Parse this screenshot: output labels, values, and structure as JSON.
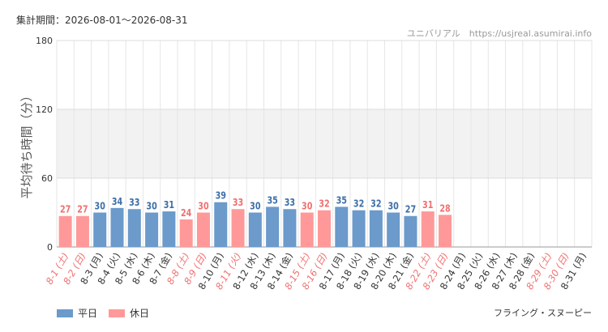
{
  "header": {
    "period": "集計期間：2026-08-01～2026-08-31",
    "source": "ユニバリアル　https://usjreal.asumirai.info",
    "attraction": "フライング・スヌーピー"
  },
  "colors": {
    "weekday": "#6b9acb",
    "holiday": "#ff9999",
    "weekday_text": "#3d6fa8",
    "holiday_text": "#f07070"
  },
  "chart_data": {
    "type": "bar",
    "ylabel": "平均待ち時間（分）",
    "ylim": [
      0,
      180
    ],
    "yticks": [
      0,
      60,
      120,
      180
    ],
    "grid": true,
    "legend_position": "bottom-left",
    "series": [
      {
        "name": "平日",
        "key": "weekday"
      },
      {
        "name": "休日",
        "key": "holiday"
      }
    ],
    "categories": [
      "8-1 (土)",
      "8-2 (日)",
      "8-3 (月)",
      "8-4 (火)",
      "8-5 (水)",
      "8-6 (木)",
      "8-7 (金)",
      "8-8 (土)",
      "8-9 (日)",
      "8-10 (月)",
      "8-11 (火)",
      "8-12 (水)",
      "8-13 (木)",
      "8-14 (金)",
      "8-15 (土)",
      "8-16 (日)",
      "8-17 (月)",
      "8-18 (火)",
      "8-19 (水)",
      "8-20 (木)",
      "8-21 (金)",
      "8-22 (土)",
      "8-23 (日)",
      "8-24 (月)",
      "8-25 (火)",
      "8-26 (水)",
      "8-27 (木)",
      "8-28 (金)",
      "8-29 (土)",
      "8-30 (日)",
      "8-31 (月)"
    ],
    "day_type": [
      "holiday",
      "holiday",
      "weekday",
      "weekday",
      "weekday",
      "weekday",
      "weekday",
      "holiday",
      "holiday",
      "weekday",
      "holiday",
      "weekday",
      "weekday",
      "weekday",
      "holiday",
      "holiday",
      "weekday",
      "weekday",
      "weekday",
      "weekday",
      "weekday",
      "holiday",
      "holiday",
      "weekday",
      "weekday",
      "weekday",
      "weekday",
      "weekday",
      "holiday",
      "holiday",
      "weekday"
    ],
    "values": [
      27,
      27,
      30,
      34,
      33,
      30,
      31,
      24,
      30,
      39,
      33,
      30,
      35,
      33,
      30,
      32,
      35,
      32,
      32,
      30,
      27,
      31,
      28,
      null,
      null,
      null,
      null,
      null,
      null,
      null,
      null
    ]
  }
}
